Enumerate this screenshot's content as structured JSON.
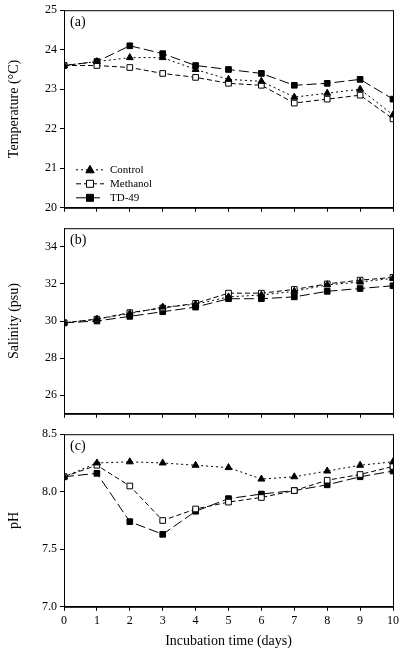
{
  "chart_data": [
    {
      "type": "line",
      "annotation": "(a)",
      "ylabel": "Temperature (°C)",
      "x": [
        0,
        1,
        2,
        3,
        4,
        5,
        6,
        7,
        8,
        9,
        10
      ],
      "series": [
        {
          "name": "Control",
          "color": "#000000",
          "marker": "triangle",
          "line_style": "dotted",
          "values": [
            23.6,
            23.7,
            23.8,
            23.8,
            23.5,
            23.25,
            23.2,
            22.8,
            22.9,
            23.0,
            22.35
          ]
        },
        {
          "name": "Methanol",
          "color": "#000000",
          "marker": "square_open",
          "line_style": "dashed",
          "values": [
            23.6,
            23.6,
            23.55,
            23.4,
            23.3,
            23.15,
            23.1,
            22.65,
            22.75,
            22.85,
            22.25
          ]
        },
        {
          "name": "TD-49",
          "color": "#000000",
          "marker": "square",
          "line_style": "longdash",
          "values": [
            23.6,
            23.7,
            24.1,
            23.9,
            23.6,
            23.5,
            23.4,
            23.1,
            23.15,
            23.25,
            22.75
          ]
        }
      ],
      "xlim": [
        0,
        10
      ],
      "xticks": [
        0,
        1,
        2,
        3,
        4,
        5,
        6,
        7,
        8,
        9,
        10
      ],
      "ylim": [
        20,
        25
      ],
      "yticks": [
        20,
        21,
        22,
        23,
        24,
        25
      ],
      "grid": false,
      "legend": "lower left",
      "tick_labels": "y"
    },
    {
      "type": "line",
      "annotation": "(b)",
      "ylabel": "Salinity (psu)",
      "x": [
        0,
        1,
        2,
        3,
        4,
        5,
        6,
        7,
        8,
        9,
        10
      ],
      "series": [
        {
          "name": "Control",
          "color": "#000000",
          "marker": "triangle",
          "line_style": "dotted",
          "values": [
            29.9,
            30.1,
            30.4,
            30.75,
            30.9,
            31.3,
            31.4,
            31.6,
            31.95,
            32.1,
            32.3
          ]
        },
        {
          "name": "Methanol",
          "color": "#000000",
          "marker": "square_open",
          "line_style": "dashed",
          "values": [
            29.9,
            30.1,
            30.45,
            30.7,
            30.95,
            31.5,
            31.5,
            31.7,
            32.0,
            32.2,
            32.35
          ]
        },
        {
          "name": "TD-49",
          "color": "#000000",
          "marker": "square",
          "line_style": "longdash",
          "values": [
            29.9,
            30.0,
            30.25,
            30.5,
            30.75,
            31.2,
            31.2,
            31.3,
            31.6,
            31.75,
            31.9
          ]
        }
      ],
      "xlim": [
        0,
        10
      ],
      "xticks": [
        0,
        1,
        2,
        3,
        4,
        5,
        6,
        7,
        8,
        9,
        10
      ],
      "ylim": [
        25,
        35
      ],
      "yticks": [
        26,
        28,
        30,
        32,
        34
      ],
      "grid": false,
      "tick_labels": "y"
    },
    {
      "type": "line",
      "annotation": "(c)",
      "ylabel": "pH",
      "xlabel": "Incubation time (days)",
      "x": [
        0,
        1,
        2,
        3,
        4,
        5,
        6,
        7,
        8,
        9,
        10
      ],
      "series": [
        {
          "name": "Control",
          "color": "#000000",
          "marker": "triangle",
          "line_style": "dotted",
          "values": [
            8.13,
            8.25,
            8.26,
            8.25,
            8.23,
            8.21,
            8.11,
            8.13,
            8.18,
            8.23,
            8.26
          ]
        },
        {
          "name": "Methanol",
          "color": "#000000",
          "marker": "square_open",
          "line_style": "dashed",
          "values": [
            8.13,
            8.23,
            8.05,
            7.75,
            7.85,
            7.91,
            7.95,
            8.01,
            8.1,
            8.15,
            8.22
          ]
        },
        {
          "name": "TD-49",
          "color": "#000000",
          "marker": "square",
          "line_style": "longdash",
          "values": [
            8.13,
            8.16,
            7.74,
            7.63,
            7.83,
            7.94,
            7.98,
            8.01,
            8.06,
            8.13,
            8.18
          ]
        }
      ],
      "xlim": [
        0,
        10
      ],
      "xticks": [
        0,
        1,
        2,
        3,
        4,
        5,
        6,
        7,
        8,
        9,
        10
      ],
      "ylim": [
        7,
        8.5
      ],
      "yticks": [
        {
          "value": 7,
          "label": "7.0"
        },
        7.5,
        {
          "value": 8,
          "label": "8.0"
        },
        8.5
      ],
      "grid": false
    }
  ]
}
